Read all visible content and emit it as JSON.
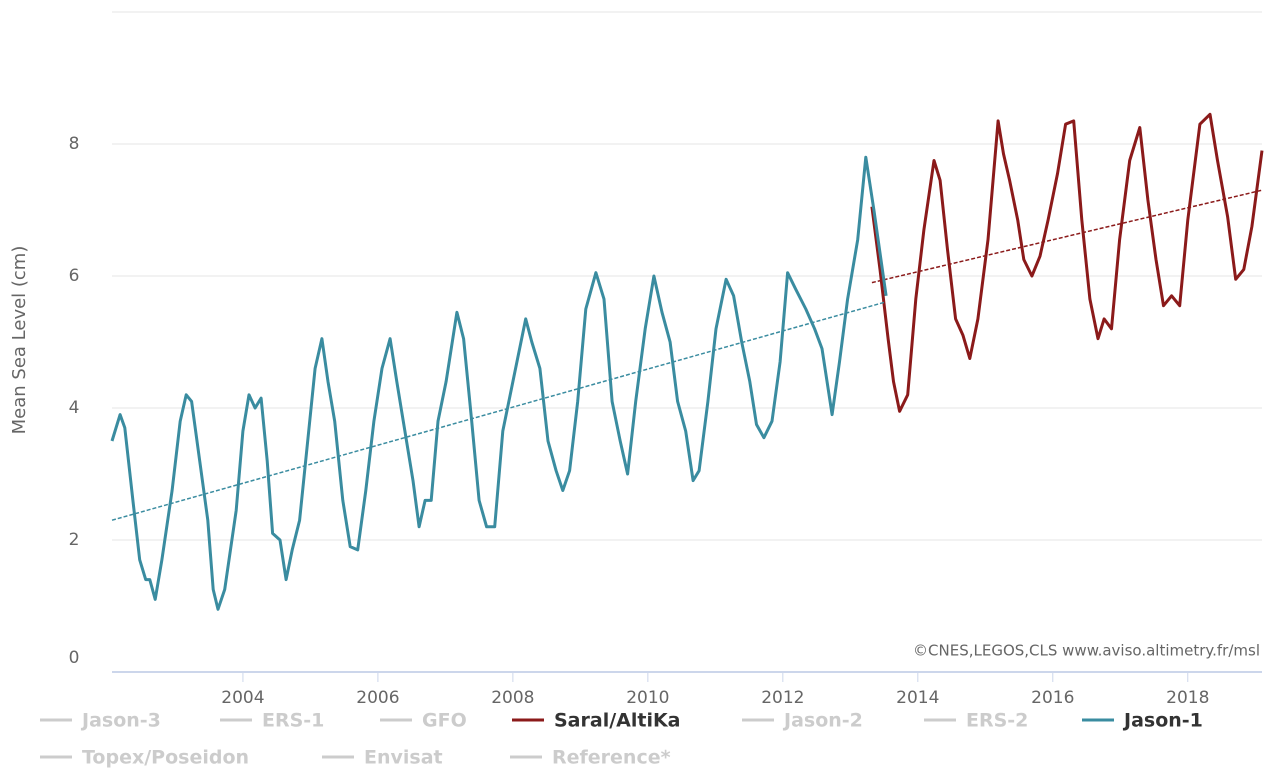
{
  "chart_data": {
    "type": "line",
    "y_label": "Mean Sea Level (cm)",
    "annotation": "©CNES,LEGOS,CLS www.aviso.altimetry.fr/msl",
    "xlim": [
      2002.06,
      2019.1
    ],
    "xticks": [
      2004,
      2006,
      2008,
      2010,
      2012,
      2014,
      2016,
      2018
    ],
    "ylim": [
      0,
      10
    ],
    "yticks": [
      0,
      2,
      4,
      6,
      8
    ],
    "grid": true,
    "series": [
      {
        "name": "Jason-3",
        "color": "#cccccc",
        "visible": false,
        "x": [],
        "values": []
      },
      {
        "name": "ERS-1",
        "color": "#cccccc",
        "visible": false,
        "x": [],
        "values": []
      },
      {
        "name": "GFO",
        "color": "#cccccc",
        "visible": false,
        "x": [],
        "values": []
      },
      {
        "name": "Saral/AltiKa",
        "color": "#8b1a1a",
        "visible": true,
        "x": [
          2013.32,
          2013.44,
          2013.56,
          2013.64,
          2013.73,
          2013.85,
          2013.97,
          2014.09,
          2014.24,
          2014.33,
          2014.44,
          2014.56,
          2014.67,
          2014.77,
          2014.89,
          2015.04,
          2015.19,
          2015.27,
          2015.36,
          2015.48,
          2015.57,
          2015.69,
          2015.81,
          2015.93,
          2016.07,
          2016.19,
          2016.31,
          2016.43,
          2016.55,
          2016.67,
          2016.76,
          2016.87,
          2016.99,
          2017.14,
          2017.29,
          2017.41,
          2017.53,
          2017.64,
          2017.76,
          2017.88,
          2018.0,
          2018.18,
          2018.33,
          2018.44,
          2018.59,
          2018.71,
          2018.83,
          2018.95,
          2019.1
        ],
        "values": [
          7.05,
          6.1,
          5.05,
          4.4,
          3.95,
          4.2,
          5.65,
          6.7,
          7.75,
          7.45,
          6.4,
          5.35,
          5.1,
          4.75,
          5.35,
          6.55,
          8.35,
          7.85,
          7.45,
          6.85,
          6.25,
          6.0,
          6.3,
          6.85,
          7.55,
          8.3,
          8.35,
          6.85,
          5.65,
          5.05,
          5.35,
          5.2,
          6.55,
          7.75,
          8.25,
          7.15,
          6.25,
          5.55,
          5.7,
          5.55,
          6.85,
          8.3,
          8.45,
          7.75,
          6.9,
          5.95,
          6.1,
          6.75,
          7.9
        ],
        "trend": {
          "x": [
            2013.32,
            2019.1
          ],
          "values": [
            5.9,
            7.3
          ]
        }
      },
      {
        "name": "Jason-2",
        "color": "#cccccc",
        "visible": false,
        "x": [],
        "values": []
      },
      {
        "name": "ERS-2",
        "color": "#cccccc",
        "visible": false,
        "x": [],
        "values": []
      },
      {
        "name": "Jason-1",
        "color": "#3a8ca0",
        "visible": true,
        "x": [
          2002.06,
          2002.18,
          2002.25,
          2002.37,
          2002.47,
          2002.56,
          2002.62,
          2002.7,
          2002.8,
          2002.95,
          2003.07,
          2003.16,
          2003.24,
          2003.36,
          2003.48,
          2003.56,
          2003.63,
          2003.73,
          2003.9,
          2004.0,
          2004.09,
          2004.18,
          2004.27,
          2004.36,
          2004.44,
          2004.55,
          2004.64,
          2004.73,
          2004.84,
          2004.96,
          2005.07,
          2005.17,
          2005.26,
          2005.36,
          2005.48,
          2005.59,
          2005.7,
          2005.82,
          2005.94,
          2006.06,
          2006.18,
          2006.28,
          2006.4,
          2006.52,
          2006.61,
          2006.7,
          2006.79,
          2006.89,
          2007.01,
          2007.17,
          2007.27,
          2007.39,
          2007.5,
          2007.61,
          2007.73,
          2007.85,
          2008.0,
          2008.19,
          2008.28,
          2008.4,
          2008.52,
          2008.64,
          2008.74,
          2008.84,
          2008.96,
          2009.08,
          2009.23,
          2009.35,
          2009.47,
          2009.59,
          2009.7,
          2009.82,
          2009.96,
          2010.09,
          2010.21,
          2010.33,
          2010.44,
          2010.56,
          2010.67,
          2010.76,
          2010.89,
          2011.01,
          2011.16,
          2011.27,
          2011.39,
          2011.51,
          2011.61,
          2011.72,
          2011.84,
          2011.96,
          2012.07,
          2012.19,
          2012.34,
          2012.47,
          2012.58,
          2012.73,
          2012.84,
          2012.96,
          2013.11,
          2013.23,
          2013.35,
          2013.53
        ],
        "values": [
          3.5,
          3.9,
          3.7,
          2.6,
          1.7,
          1.4,
          1.4,
          1.1,
          1.7,
          2.75,
          3.8,
          4.2,
          4.1,
          3.2,
          2.3,
          1.25,
          0.95,
          1.25,
          2.45,
          3.65,
          4.2,
          4.0,
          4.15,
          3.2,
          2.1,
          2.0,
          1.4,
          1.85,
          2.3,
          3.5,
          4.6,
          5.05,
          4.4,
          3.8,
          2.6,
          1.9,
          1.85,
          2.75,
          3.8,
          4.6,
          5.05,
          4.4,
          3.65,
          2.9,
          2.2,
          2.6,
          2.6,
          3.8,
          4.4,
          5.45,
          5.05,
          3.8,
          2.6,
          2.2,
          2.2,
          3.65,
          4.4,
          5.35,
          5.0,
          4.6,
          3.5,
          3.05,
          2.75,
          3.05,
          4.1,
          5.5,
          6.05,
          5.65,
          4.1,
          3.5,
          3.0,
          4.1,
          5.2,
          6.0,
          5.45,
          5.0,
          4.1,
          3.65,
          2.9,
          3.05,
          4.1,
          5.2,
          5.95,
          5.7,
          5.0,
          4.4,
          3.75,
          3.55,
          3.8,
          4.7,
          6.05,
          5.8,
          5.5,
          5.2,
          4.9,
          3.9,
          4.7,
          5.65,
          6.55,
          7.8,
          7.0,
          5.7
        ],
        "trend": {
          "x": [
            2002.06,
            2013.5
          ],
          "values": [
            2.3,
            5.6
          ]
        }
      },
      {
        "name": "Topex/Poseidon",
        "color": "#cccccc",
        "visible": false,
        "x": [],
        "values": []
      },
      {
        "name": "Envisat",
        "color": "#cccccc",
        "visible": false,
        "x": [],
        "values": []
      },
      {
        "name": "Reference*",
        "color": "#cccccc",
        "visible": false,
        "x": [],
        "values": []
      }
    ]
  }
}
